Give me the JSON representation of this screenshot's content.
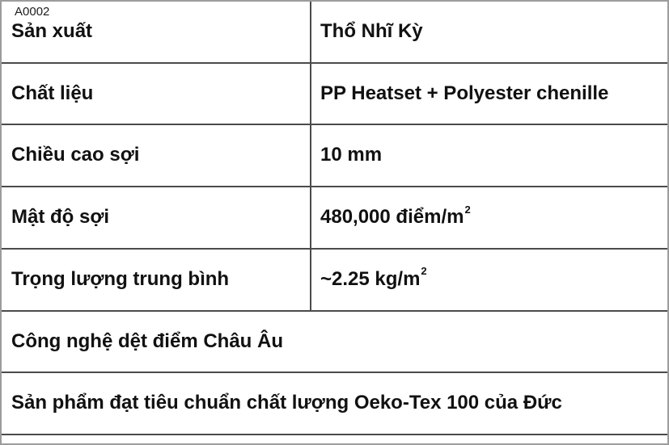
{
  "page_label": "A0002",
  "table": {
    "rows": [
      {
        "label": "Sản xuất",
        "value": "Thổ Nhĩ Kỳ",
        "value_sup": ""
      },
      {
        "label": "Chất liệu",
        "value": "PP Heatset + Polyester chenille",
        "value_sup": ""
      },
      {
        "label": "Chiều cao sợi",
        "value": "10 mm",
        "value_sup": ""
      },
      {
        "label": "Mật độ sợi",
        "value": "480,000 điểm/m",
        "value_sup": "2"
      },
      {
        "label": "Trọng lượng trung bình",
        "value": "~2.25 kg/m",
        "value_sup": "2"
      }
    ],
    "full_rows": [
      {
        "text": "Công nghệ dệt điểm Châu Âu"
      },
      {
        "text": "Sản phẩm đạt tiêu chuẩn chất lượng Oeko-Tex 100 của Đức"
      }
    ]
  },
  "colors": {
    "outer_border": "#9c9c9c",
    "inner_border": "#4b4b4b",
    "text": "#111111"
  }
}
